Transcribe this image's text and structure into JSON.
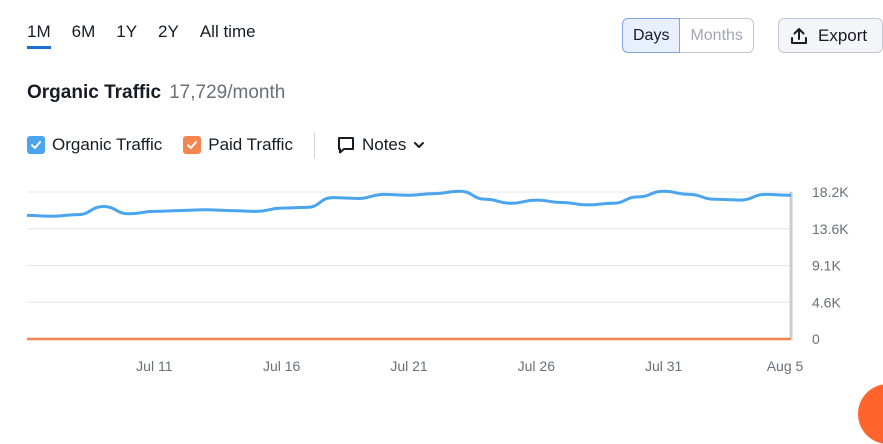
{
  "period_tabs": [
    "1M",
    "6M",
    "1Y",
    "2Y",
    "All time"
  ],
  "active_period": "1M",
  "toggle": {
    "days": "Days",
    "months": "Months"
  },
  "export_label": "Export",
  "title": {
    "label": "Organic Traffic",
    "value": "17,729/month"
  },
  "legend": {
    "organic": "Organic Traffic",
    "paid": "Paid Traffic",
    "notes": "Notes"
  },
  "colors": {
    "organic": "#4aa5ee",
    "paid": "#f4854e",
    "accent": "#1a6fd4"
  },
  "icons": [
    "checkbox-checked-icon",
    "note-icon",
    "chevron-down-icon",
    "upload-icon"
  ],
  "chart_data": {
    "type": "line",
    "x": [
      "Jul 6",
      "Jul 7",
      "Jul 8",
      "Jul 9",
      "Jul 10",
      "Jul 11",
      "Jul 12",
      "Jul 13",
      "Jul 14",
      "Jul 15",
      "Jul 16",
      "Jul 17",
      "Jul 18",
      "Jul 19",
      "Jul 20",
      "Jul 21",
      "Jul 22",
      "Jul 23",
      "Jul 24",
      "Jul 25",
      "Jul 26",
      "Jul 27",
      "Jul 28",
      "Jul 29",
      "Jul 30",
      "Jul 31",
      "Aug 1",
      "Aug 2",
      "Aug 3",
      "Aug 4",
      "Aug 5"
    ],
    "x_ticks": [
      "Jul 11",
      "Jul 16",
      "Jul 21",
      "Jul 26",
      "Jul 31",
      "Aug 5"
    ],
    "y_ticks": [
      "18.2K",
      "13.6K",
      "9.1K",
      "4.6K",
      "0"
    ],
    "ylim": [
      0,
      18200
    ],
    "grid": true,
    "series": [
      {
        "name": "Organic Traffic",
        "color": "#4aa5ee",
        "values": [
          15300,
          15200,
          15400,
          16400,
          15500,
          15800,
          15900,
          16000,
          15900,
          15800,
          16200,
          16300,
          17500,
          17400,
          17900,
          17800,
          18000,
          18300,
          17300,
          16800,
          17200,
          16900,
          16600,
          16800,
          17600,
          18300,
          17900,
          17300,
          17200,
          17900,
          17800
        ]
      },
      {
        "name": "Paid Traffic",
        "color": "#f4854e",
        "values": [
          0,
          0,
          0,
          0,
          0,
          0,
          0,
          0,
          0,
          0,
          0,
          0,
          0,
          0,
          0,
          0,
          0,
          0,
          0,
          0,
          0,
          0,
          0,
          0,
          0,
          0,
          0,
          0,
          0,
          0,
          0
        ]
      }
    ]
  }
}
